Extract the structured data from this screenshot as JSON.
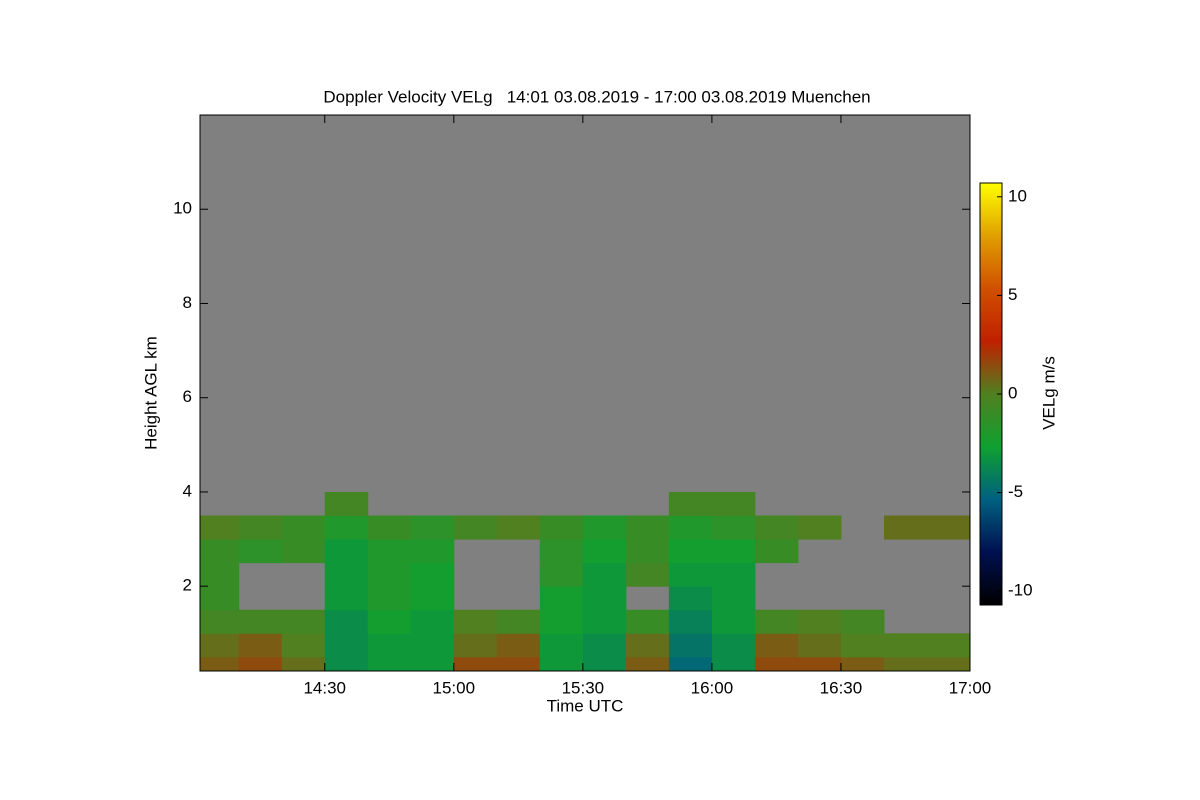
{
  "chart_data": {
    "type": "heatmap",
    "title": "Doppler Velocity VELg   14:01 03.08.2019 - 17:00 03.08.2019 Muenchen",
    "xlabel": "Time UTC",
    "ylabel": "Height AGL km",
    "colorbar_label": "VELg m/s",
    "xlim": [
      14.0167,
      17
    ],
    "ylim": [
      0.2,
      12
    ],
    "xticks": [
      {
        "value": 14.5,
        "label": "14:30"
      },
      {
        "value": 15,
        "label": "15:00"
      },
      {
        "value": 15.5,
        "label": "15:30"
      },
      {
        "value": 16,
        "label": "16:00"
      },
      {
        "value": 16.5,
        "label": "16:30"
      },
      {
        "value": 17,
        "label": "17:00"
      }
    ],
    "yticks": [
      2,
      4,
      6,
      8,
      10
    ],
    "zlim": [
      -10.7,
      10.7
    ],
    "zticks": [
      -10,
      -5,
      0,
      5,
      10
    ],
    "background": "#808080",
    "colormap": [
      "#000000",
      "#001050",
      "#006080",
      "#10a030",
      "#508020",
      "#c02000",
      "#d05000",
      "#e0a000",
      "#ffff00"
    ],
    "xbins": [
      14.0167,
      14.1667,
      14.3333,
      14.5,
      14.6667,
      14.8333,
      15,
      15.1667,
      15.3333,
      15.5,
      15.6667,
      15.8333,
      16,
      16.1667,
      16.3333,
      16.5,
      16.6667,
      16.8333,
      17
    ],
    "ybins": [
      0.2,
      0.5,
      1,
      1.5,
      2,
      2.5,
      3,
      3.5,
      4
    ],
    "values": [
      [
        1,
        1.5,
        0.5,
        -3.5,
        -3,
        -3,
        1.5,
        1.5,
        -3,
        -3.5,
        1,
        -5,
        -3.5,
        1.5,
        1.5,
        1,
        0.5,
        0.5
      ],
      [
        0.5,
        1,
        0,
        -3.5,
        -3,
        -3,
        0.5,
        1,
        -3,
        -3.5,
        0.5,
        -4.5,
        -3.5,
        1,
        0.5,
        0,
        0,
        0
      ],
      [
        -0.5,
        -0.5,
        -0.5,
        -3.5,
        -2.5,
        -3,
        0,
        -0.5,
        -2.5,
        -3,
        -1,
        -4,
        -3,
        -0.5,
        0,
        -0.5,
        null,
        null
      ],
      [
        -1,
        null,
        null,
        -3,
        -2,
        -2.5,
        null,
        null,
        -2.5,
        -3,
        null,
        -3.5,
        -3,
        null,
        null,
        null,
        null,
        null
      ],
      [
        -1,
        null,
        null,
        -3,
        -2,
        -2.5,
        null,
        null,
        -1.5,
        -3,
        -0.5,
        -3,
        -3,
        null,
        null,
        null,
        null,
        null
      ],
      [
        -1,
        -1.5,
        -1,
        -3,
        -2,
        -2,
        null,
        null,
        -1.5,
        -2.5,
        -1,
        -2.5,
        -2.5,
        -1,
        null,
        null,
        null,
        null
      ],
      [
        0,
        -0.5,
        -1,
        -2,
        -1,
        -1.5,
        -0.5,
        0,
        -1,
        -2,
        -1,
        -2,
        -1.5,
        -0.5,
        0,
        null,
        0.5,
        0.5
      ],
      [
        null,
        null,
        null,
        -0.5,
        null,
        null,
        null,
        null,
        null,
        null,
        null,
        -0.5,
        -0.5,
        null,
        null,
        null,
        null,
        null
      ]
    ]
  }
}
